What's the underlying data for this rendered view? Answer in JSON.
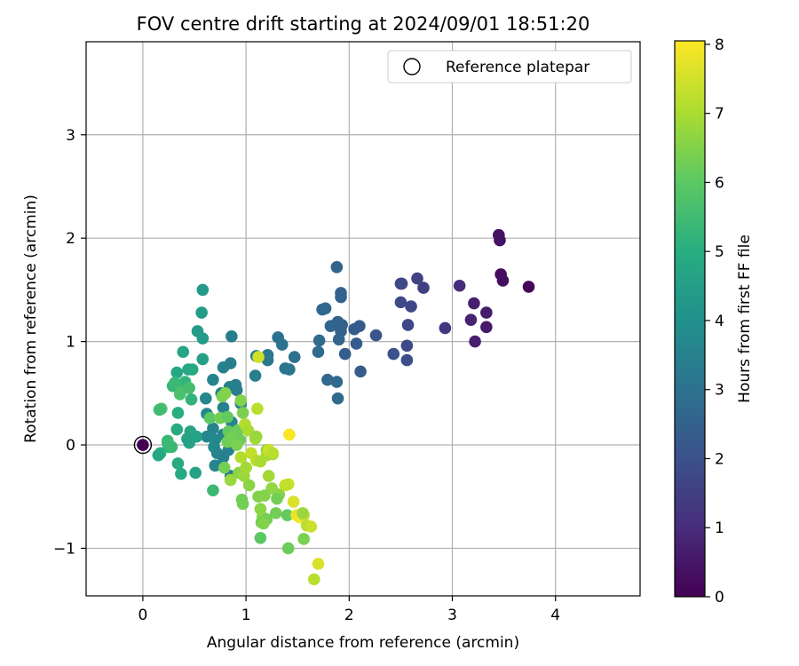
{
  "chart_data": {
    "type": "scatter",
    "title": "FOV centre drift starting at 2024/09/01 18:51:20",
    "xlabel": "Angular distance from reference (arcmin)",
    "ylabel": "Rotation from reference (arcmin)",
    "xlim": [
      -0.55,
      4.82
    ],
    "ylim": [
      -1.46,
      3.9
    ],
    "xticks": [
      0,
      1,
      2,
      3,
      4
    ],
    "xtick_labels": [
      "0",
      "1",
      "2",
      "3",
      "4"
    ],
    "yticks": [
      -1,
      0,
      1,
      2,
      3
    ],
    "ytick_labels": [
      "−1",
      "0",
      "1",
      "2",
      "3"
    ],
    "grid": true,
    "legend": {
      "position": "upper-right",
      "entries": [
        "Reference platepar"
      ]
    },
    "colorbar": {
      "label": "Hours from first FF file",
      "colormap": "viridis",
      "range": [
        0,
        8.05
      ],
      "ticks": [
        0,
        1,
        2,
        3,
        4,
        5,
        6,
        7,
        8
      ],
      "tick_labels": [
        "0",
        "1",
        "2",
        "3",
        "4",
        "5",
        "6",
        "7",
        "8"
      ]
    },
    "reference_point": {
      "name": "Reference platepar",
      "x": 0,
      "y": 0
    },
    "points": [
      [
        3.45,
        2.03,
        0.4
      ],
      [
        3.46,
        1.98,
        0.4
      ],
      [
        3.47,
        1.65,
        0.3
      ],
      [
        3.49,
        1.59,
        0.3
      ],
      [
        3.74,
        1.53,
        0.1
      ],
      [
        3.21,
        1.37,
        0.7
      ],
      [
        3.33,
        1.28,
        0.6
      ],
      [
        3.18,
        1.21,
        0.8
      ],
      [
        3.33,
        1.14,
        0.6
      ],
      [
        3.22,
        1.0,
        0.7
      ],
      [
        3.07,
        1.54,
        1.0
      ],
      [
        2.93,
        1.13,
        1.3
      ],
      [
        2.72,
        1.52,
        1.5
      ],
      [
        2.66,
        1.61,
        1.6
      ],
      [
        2.51,
        1.56,
        1.8
      ],
      [
        2.5,
        1.56,
        1.8
      ],
      [
        2.6,
        1.34,
        1.7
      ],
      [
        2.5,
        1.38,
        1.8
      ],
      [
        2.57,
        1.16,
        1.7
      ],
      [
        2.56,
        0.96,
        1.8
      ],
      [
        2.43,
        0.88,
        2.0
      ],
      [
        2.56,
        0.82,
        1.9
      ],
      [
        2.26,
        1.06,
        2.1
      ],
      [
        2.1,
        1.15,
        2.3
      ],
      [
        2.05,
        1.12,
        2.3
      ],
      [
        2.07,
        0.98,
        2.3
      ],
      [
        1.96,
        0.88,
        2.4
      ],
      [
        2.11,
        0.71,
        2.3
      ],
      [
        1.92,
        1.43,
        2.5
      ],
      [
        1.92,
        1.47,
        2.5
      ],
      [
        1.88,
        1.72,
        2.6
      ],
      [
        1.93,
        1.16,
        2.5
      ],
      [
        1.89,
        1.19,
        2.5
      ],
      [
        1.82,
        1.15,
        2.6
      ],
      [
        1.92,
        1.1,
        2.5
      ],
      [
        1.9,
        1.02,
        2.6
      ],
      [
        1.77,
        1.32,
        2.7
      ],
      [
        1.74,
        1.31,
        2.7
      ],
      [
        1.71,
        1.01,
        2.8
      ],
      [
        1.7,
        0.9,
        2.8
      ],
      [
        1.79,
        0.63,
        2.7
      ],
      [
        1.88,
        0.61,
        2.7
      ],
      [
        1.89,
        0.45,
        2.7
      ],
      [
        1.31,
        1.04,
        3.0
      ],
      [
        1.35,
        0.97,
        3.0
      ],
      [
        1.47,
        0.85,
        3.0
      ],
      [
        1.38,
        0.74,
        3.1
      ],
      [
        1.42,
        0.73,
        3.1
      ],
      [
        1.21,
        0.82,
        3.2
      ],
      [
        1.21,
        0.87,
        3.2
      ],
      [
        1.1,
        0.86,
        3.3
      ],
      [
        1.09,
        0.67,
        3.4
      ],
      [
        0.9,
        0.58,
        3.4
      ],
      [
        0.86,
        1.05,
        3.4
      ],
      [
        0.85,
        0.79,
        3.4
      ],
      [
        0.84,
        0.56,
        3.5
      ],
      [
        0.78,
        0.75,
        3.5
      ],
      [
        0.76,
        0.5,
        3.6
      ],
      [
        0.68,
        0.63,
        3.6
      ],
      [
        0.61,
        0.45,
        3.7
      ],
      [
        0.62,
        0.3,
        3.7
      ],
      [
        0.68,
        0.16,
        3.6
      ],
      [
        0.78,
        0.36,
        3.5
      ],
      [
        0.86,
        0.22,
        3.6
      ],
      [
        0.78,
        0.1,
        3.6
      ],
      [
        0.7,
        0.05,
        3.8
      ],
      [
        0.62,
        0.08,
        3.7
      ],
      [
        0.69,
        -0.02,
        3.8
      ],
      [
        0.72,
        -0.08,
        3.6
      ],
      [
        0.78,
        -0.12,
        3.5
      ],
      [
        0.83,
        -0.05,
        3.5
      ],
      [
        0.7,
        -0.2,
        3.6
      ],
      [
        0.77,
        -0.2,
        3.5
      ],
      [
        0.85,
        -0.3,
        3.4
      ],
      [
        0.95,
        0.4,
        3.5
      ],
      [
        0.58,
        1.5,
        4.3
      ],
      [
        0.57,
        1.28,
        4.4
      ],
      [
        0.53,
        1.1,
        4.4
      ],
      [
        0.58,
        1.03,
        4.4
      ],
      [
        0.58,
        0.83,
        4.5
      ],
      [
        0.39,
        0.9,
        4.7
      ],
      [
        0.44,
        0.73,
        4.8
      ],
      [
        0.33,
        0.7,
        4.8
      ],
      [
        0.48,
        0.73,
        4.9
      ],
      [
        0.35,
        0.58,
        4.9
      ],
      [
        0.29,
        0.57,
        5.3
      ],
      [
        0.41,
        0.61,
        5.2
      ],
      [
        0.31,
        0.6,
        5.4
      ],
      [
        0.37,
        0.52,
        5.6
      ],
      [
        0.45,
        0.55,
        5.6
      ],
      [
        0.36,
        0.49,
        5.7
      ],
      [
        0.47,
        0.44,
        5.2
      ],
      [
        0.34,
        0.31,
        5.0
      ],
      [
        0.18,
        0.35,
        5.7
      ],
      [
        0.16,
        0.34,
        5.5
      ],
      [
        0.33,
        0.15,
        4.9
      ],
      [
        0.46,
        0.13,
        4.7
      ],
      [
        0.52,
        0.08,
        4.6
      ],
      [
        0.45,
        0.02,
        4.7
      ],
      [
        0.43,
        0.06,
        4.6
      ],
      [
        0.24,
        0.02,
        5.1
      ],
      [
        0.25,
        -0.02,
        5.3
      ],
      [
        0.28,
        -0.02,
        5.4
      ],
      [
        0.24,
        0.04,
        5.4
      ],
      [
        0.17,
        -0.08,
        5.1
      ],
      [
        0.15,
        -0.1,
        4.8
      ],
      [
        0.34,
        -0.18,
        4.9
      ],
      [
        0.37,
        -0.28,
        4.9
      ],
      [
        0.51,
        -0.27,
        4.6
      ],
      [
        0.68,
        -0.44,
        5.4
      ],
      [
        0.91,
        0.53,
        3.4
      ],
      [
        0.77,
        0.47,
        6.4
      ],
      [
        0.65,
        0.26,
        6.0
      ],
      [
        0.75,
        0.26,
        6.3
      ],
      [
        0.82,
        0.27,
        6.1
      ],
      [
        0.83,
        0.13,
        6.1
      ],
      [
        0.92,
        0.14,
        6.2
      ],
      [
        0.87,
        0.08,
        6.3
      ],
      [
        0.94,
        0.05,
        6.2
      ],
      [
        0.82,
        0.03,
        6.3
      ],
      [
        0.79,
        -0.22,
        6.3
      ],
      [
        0.85,
        -0.34,
        6.8
      ],
      [
        0.93,
        -0.27,
        6.6
      ],
      [
        0.98,
        -0.3,
        6.8
      ],
      [
        0.97,
        0.31,
        6.4
      ],
      [
        0.95,
        0.43,
        6.5
      ],
      [
        0.99,
        0.2,
        7.1
      ],
      [
        1.02,
        0.14,
        7.0
      ],
      [
        1.09,
        0.06,
        7.0
      ],
      [
        1.1,
        0.08,
        6.8
      ],
      [
        0.95,
        -0.12,
        7.1
      ],
      [
        1.05,
        -0.08,
        7.3
      ],
      [
        1.1,
        -0.15,
        7.2
      ],
      [
        1.14,
        -0.16,
        7.0
      ],
      [
        1.2,
        -0.05,
        6.6
      ],
      [
        1.2,
        -0.1,
        7.0
      ],
      [
        1.26,
        -0.09,
        6.9
      ],
      [
        1.22,
        -0.05,
        7.4
      ],
      [
        1.26,
        -0.08,
        7.2
      ],
      [
        1.22,
        -0.3,
        6.9
      ],
      [
        1.25,
        -0.42,
        6.7
      ],
      [
        1.32,
        -0.48,
        6.6
      ],
      [
        1.3,
        -0.52,
        6.3
      ],
      [
        1.12,
        -0.5,
        6.5
      ],
      [
        1.18,
        -0.49,
        6.5
      ],
      [
        1.03,
        -0.39,
        6.6
      ],
      [
        0.97,
        -0.57,
        6.3
      ],
      [
        0.96,
        -0.53,
        6.3
      ],
      [
        1.14,
        -0.62,
        6.6
      ],
      [
        1.16,
        -0.7,
        6.6
      ],
      [
        1.15,
        -0.75,
        6.3
      ],
      [
        1.14,
        -0.9,
        6.0
      ],
      [
        1.2,
        -0.72,
        6.3
      ],
      [
        1.17,
        -0.76,
        6.5
      ],
      [
        1.29,
        -0.66,
        6.3
      ],
      [
        1.4,
        -0.68,
        6.1
      ],
      [
        1.41,
        -0.38,
        7.4
      ],
      [
        1.38,
        -0.39,
        7.3
      ],
      [
        1.46,
        -0.55,
        7.6
      ],
      [
        1.49,
        -0.68,
        7.8
      ],
      [
        1.52,
        -0.7,
        7.9
      ],
      [
        1.56,
        -0.68,
        7.4
      ],
      [
        1.55,
        -0.66,
        6.8
      ],
      [
        1.59,
        -0.78,
        7.2
      ],
      [
        1.56,
        -0.91,
        6.4
      ],
      [
        1.63,
        -0.79,
        7.4
      ],
      [
        1.41,
        -1.0,
        6.2
      ],
      [
        1.7,
        -1.15,
        7.6
      ],
      [
        1.66,
        -1.3,
        7.2
      ],
      [
        1.11,
        0.35,
        7.2
      ],
      [
        1.12,
        0.85,
        7.5
      ],
      [
        1.42,
        0.1,
        8.0
      ],
      [
        0.91,
        0.0,
        6.4
      ],
      [
        1.0,
        -0.22,
        6.9
      ],
      [
        0.8,
        0.5,
        6.5
      ]
    ]
  }
}
